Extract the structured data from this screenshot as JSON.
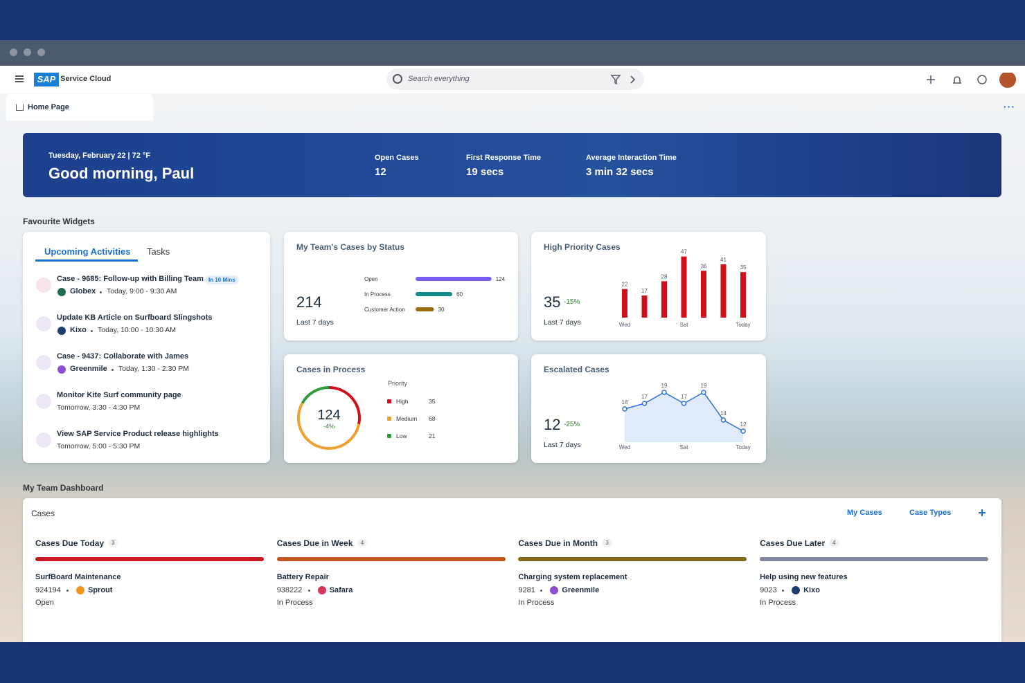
{
  "app": {
    "brand": "SAP",
    "product": "Service Cloud",
    "search_placeholder": "Search everything"
  },
  "tab": "Home Page",
  "hero": {
    "date": "Tuesday, February 22 | 72 °F",
    "greeting": "Good morning, Paul",
    "metrics": [
      {
        "label": "Open Cases",
        "value": "12"
      },
      {
        "label": "First Response Time",
        "value": "19 secs"
      },
      {
        "label": "Average Interaction Time",
        "value": "3 min 32 secs"
      }
    ]
  },
  "favourites_title": "Favourite Widgets",
  "activities": {
    "tabs": [
      "Upcoming Activities",
      "Tasks"
    ],
    "items": [
      {
        "title": "Case - 9685: Follow-up with Billing Team",
        "badge": "In 10 Mins",
        "account": "Globex",
        "time": "Today, 9:00 - 9:30 AM"
      },
      {
        "title": "Update KB Article on Surfboard Slingshots",
        "account": "Kixo",
        "time": "Today, 10:00 - 10:30 AM"
      },
      {
        "title": "Case - 9437: Collaborate with James",
        "account": "Greenmile",
        "time": "Today, 1:30 - 2:30 PM"
      },
      {
        "title": "Monitor Kite Surf community page",
        "time": "Tomorrow, 3:30 - 4:30 PM"
      },
      {
        "title": "View SAP Service Product release highlights",
        "time": "Tomorrow, 5:00 - 5:30 PM"
      }
    ]
  },
  "widgets": {
    "team_status": {
      "title": "My Team's Cases by Status",
      "total": 214,
      "period": "Last 7 days",
      "categories": [
        "Open",
        "In Process",
        "Customer Action"
      ],
      "values": [
        124,
        60,
        30
      ],
      "colors": [
        "#7b5cf0",
        "#138a8a",
        "#9a6d12"
      ],
      "xlim": [
        0,
        130
      ]
    },
    "high_priority": {
      "title": "High Priority Cases",
      "total": 35,
      "change": "-15%",
      "period": "Last 7 days",
      "categories": [
        "Wed",
        null,
        null,
        "Sat",
        null,
        null,
        "Today"
      ],
      "values": [
        22,
        17,
        28,
        47,
        36,
        41,
        35
      ],
      "color": "#d0111b",
      "ylim": [
        0,
        50
      ]
    },
    "cases_in_process": {
      "title": "Cases in Process",
      "total": 124,
      "change": "-4%",
      "legend_title": "Priority",
      "categories": [
        "High",
        "Medium",
        "Low"
      ],
      "values": [
        35,
        68,
        21
      ],
      "colors": [
        "#d0111b",
        "#f0a030",
        "#2f9b3a"
      ]
    },
    "escalated": {
      "title": "Escalated Cases",
      "total": 12,
      "change": "-25%",
      "period": "Last 7 days",
      "categories": [
        "Wed",
        null,
        null,
        "Sat",
        null,
        null,
        "Today"
      ],
      "values": [
        16,
        17,
        19,
        17,
        19,
        14,
        12
      ],
      "color": "#2a6fdb",
      "ylim": [
        10,
        20
      ]
    }
  },
  "dashboard": {
    "title": "My Team Dashboard",
    "card_title": "Cases",
    "filters": [
      "My Cases",
      "Case Types"
    ],
    "columns": [
      {
        "title": "Cases Due Today",
        "count": 3,
        "color": "#cc1a24",
        "case": {
          "title": "SurfBoard Maintenance",
          "id": "924194",
          "account": "Sprout",
          "status": "Open"
        }
      },
      {
        "title": "Cases Due in Week",
        "count": 4,
        "color": "#c2561c",
        "case": {
          "title": "Battery Repair",
          "id": "938222",
          "account": "Safara",
          "status": "In Process"
        }
      },
      {
        "title": "Cases Due in Month",
        "count": 3,
        "color": "#7e6a1c",
        "case": {
          "title": "Charging system replacement",
          "id": "9281",
          "account": "Greenmile",
          "status": "In Process"
        }
      },
      {
        "title": "Cases Due Later",
        "count": 4,
        "color": "#7d8a9c",
        "case": {
          "title": "Help using new features",
          "id": "9023",
          "account": "Kixo",
          "status": "In Process"
        }
      }
    ]
  }
}
